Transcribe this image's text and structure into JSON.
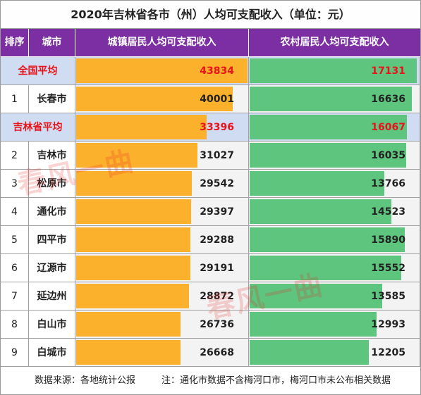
{
  "title": "2020年吉林省各市（州）人均可支配收入（单位：元）",
  "headers": {
    "index": "排序",
    "city": "城市",
    "urban": "城镇居民人均可支配收入",
    "rural": "农村居民人均可支配收入"
  },
  "chart_data": {
    "type": "bar",
    "title": "2020年吉林省各市（州）人均可支配收入（单位：元）",
    "categories": [
      "全国平均",
      "长春市",
      "吉林省平均",
      "吉林市",
      "松原市",
      "通化市",
      "四平市",
      "辽源市",
      "延边州",
      "白山市",
      "白城市"
    ],
    "series": [
      {
        "name": "城镇居民人均可支配收入",
        "values": [
          43834,
          40001,
          33396,
          31027,
          29542,
          29397,
          29288,
          29191,
          28872,
          26736,
          26668
        ]
      },
      {
        "name": "农村居民人均可支配收入",
        "values": [
          17131,
          16636,
          16067,
          16035,
          13766,
          14523,
          15890,
          15552,
          13585,
          12993,
          12205
        ]
      }
    ]
  },
  "rows": [
    {
      "rank": "",
      "city": "全国平均",
      "urban": "43834",
      "rural": "17131",
      "avg": true
    },
    {
      "rank": "1",
      "city": "长春市",
      "urban": "40001",
      "rural": "16636",
      "avg": false
    },
    {
      "rank": "",
      "city": "吉林省平均",
      "urban": "33396",
      "rural": "16067",
      "avg": true
    },
    {
      "rank": "2",
      "city": "吉林市",
      "urban": "31027",
      "rural": "16035",
      "avg": false
    },
    {
      "rank": "3",
      "city": "松原市",
      "urban": "29542",
      "rural": "13766",
      "avg": false
    },
    {
      "rank": "4",
      "city": "通化市",
      "urban": "29397",
      "rural": "14523",
      "avg": false
    },
    {
      "rank": "5",
      "city": "四平市",
      "urban": "29288",
      "rural": "15890",
      "avg": false
    },
    {
      "rank": "6",
      "city": "辽源市",
      "urban": "29191",
      "rural": "15552",
      "avg": false
    },
    {
      "rank": "7",
      "city": "延边州",
      "urban": "28872",
      "rural": "13585",
      "avg": false
    },
    {
      "rank": "8",
      "city": "白山市",
      "urban": "26736",
      "rural": "12993",
      "avg": false
    },
    {
      "rank": "9",
      "city": "白城市",
      "urban": "26668",
      "rural": "12205",
      "avg": false
    }
  ],
  "footer": {
    "source": "数据来源：各地统计公报",
    "note": "注：通化市数据不含梅河口市，梅河口市未公布相关数据"
  },
  "watermark": "春风一曲",
  "colors": {
    "header_bg": "#7b2fa2",
    "urban_bar": "#fbb12b",
    "rural_bar": "#5ec57e",
    "avg_row_bg": "#d0dcf1",
    "avg_text": "#e8141b"
  }
}
